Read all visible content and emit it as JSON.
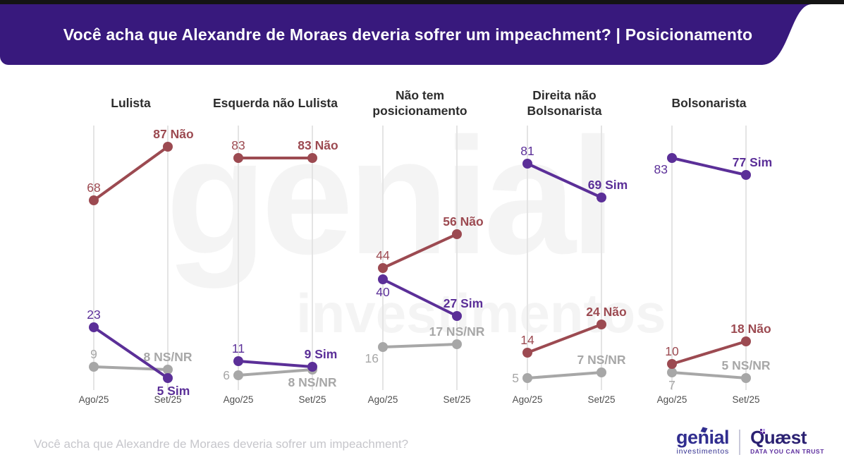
{
  "header": {
    "title": "Você acha que Alexandre de Moraes deveria sofrer um impeachment? | Posicionamento",
    "bg_color": "#38197D"
  },
  "watermark": {
    "line1": "genial",
    "line2": "investimentos"
  },
  "chart_data": {
    "type": "line",
    "subtype": "slope-chart-small-multiples",
    "x": [
      "Ago/25",
      "Set/25"
    ],
    "ylim": [
      0,
      100
    ],
    "grid": "vertical-only",
    "grid_color": "#e4e4e4",
    "axis_color": "#4f4f4f",
    "series_colors": {
      "nao": "#9C4A51",
      "sim": "#5B2F98",
      "nsnr": "#A7A7A7"
    },
    "panels": [
      {
        "title": "Lulista",
        "series": [
          {
            "key": "nsnr",
            "name": "NS/NR",
            "values": [
              9,
              8
            ],
            "labels": [
              {
                "text": "9",
                "pos": "above"
              },
              {
                "text": "8 NS/NR",
                "pos": "above"
              }
            ]
          },
          {
            "key": "nao",
            "name": "Não",
            "values": [
              68,
              87
            ],
            "labels": [
              {
                "text": "68",
                "pos": "above"
              },
              {
                "text": "87 Não",
                "pos": "above",
                "dx": 8
              }
            ]
          },
          {
            "key": "sim",
            "name": "Sim",
            "values": [
              23,
              5
            ],
            "labels": [
              {
                "text": "23",
                "pos": "above"
              },
              {
                "text": "5 Sim",
                "pos": "below",
                "dx": 8
              }
            ]
          }
        ]
      },
      {
        "title": "Esquerda não Lulista",
        "series": [
          {
            "key": "nsnr",
            "name": "NS/NR",
            "values": [
              6,
              8
            ],
            "labels": [
              {
                "text": "6",
                "pos": "left"
              },
              {
                "text": "8 NS/NR",
                "pos": "below"
              }
            ]
          },
          {
            "key": "nao",
            "name": "Não",
            "values": [
              83,
              83
            ],
            "labels": [
              {
                "text": "83",
                "pos": "above"
              },
              {
                "text": "83 Não",
                "pos": "above",
                "dx": 8
              }
            ]
          },
          {
            "key": "sim",
            "name": "Sim",
            "values": [
              11,
              9
            ],
            "labels": [
              {
                "text": "11",
                "pos": "above"
              },
              {
                "text": "9 Sim",
                "pos": "above",
                "dx": 12
              }
            ]
          }
        ]
      },
      {
        "title": "Não tem posicionamento",
        "series": [
          {
            "key": "nsnr",
            "name": "NS/NR",
            "values": [
              16,
              17
            ],
            "labels": [
              {
                "text": "16",
                "pos": "below-left"
              },
              {
                "text": "17 NS/NR",
                "pos": "above"
              }
            ]
          },
          {
            "key": "nao",
            "name": "Não",
            "values": [
              44,
              56
            ],
            "labels": [
              {
                "text": "44",
                "pos": "above"
              },
              {
                "text": "56 Não",
                "pos": "above",
                "dx": 9
              }
            ]
          },
          {
            "key": "sim",
            "name": "Sim",
            "values": [
              40,
              27
            ],
            "labels": [
              {
                "text": "40",
                "pos": "below"
              },
              {
                "text": "27 Sim",
                "pos": "above",
                "dx": 9
              }
            ]
          }
        ]
      },
      {
        "title": "Direita não Bolsonarista",
        "series": [
          {
            "key": "nsnr",
            "name": "NS/NR",
            "values": [
              5,
              7
            ],
            "labels": [
              {
                "text": "5",
                "pos": "left"
              },
              {
                "text": "7 NS/NR",
                "pos": "above"
              }
            ]
          },
          {
            "key": "nao",
            "name": "Não",
            "values": [
              14,
              24
            ],
            "labels": [
              {
                "text": "14",
                "pos": "above"
              },
              {
                "text": "24 Não",
                "pos": "above",
                "dx": 7
              }
            ]
          },
          {
            "key": "sim",
            "name": "Sim",
            "values": [
              81,
              69
            ],
            "labels": [
              {
                "text": "81",
                "pos": "above"
              },
              {
                "text": "69 Sim",
                "pos": "above",
                "dx": 9
              }
            ]
          }
        ]
      },
      {
        "title": "Bolsonarista",
        "series": [
          {
            "key": "nsnr",
            "name": "NS/NR",
            "values": [
              7,
              5
            ],
            "labels": [
              {
                "text": "7",
                "pos": "below"
              },
              {
                "text": "5 NS/NR",
                "pos": "above"
              }
            ]
          },
          {
            "key": "nao",
            "name": "Não",
            "values": [
              10,
              18
            ],
            "labels": [
              {
                "text": "10",
                "pos": "above"
              },
              {
                "text": "18 Não",
                "pos": "above",
                "dx": 7
              }
            ]
          },
          {
            "key": "sim",
            "name": "Sim",
            "values": [
              83,
              77
            ],
            "labels": [
              {
                "text": "83",
                "pos": "below-left"
              },
              {
                "text": "77 Sim",
                "pos": "above",
                "dx": 9
              }
            ]
          }
        ]
      }
    ]
  },
  "footer": {
    "question": "Você acha que Alexandre de Moraes deveria sofrer um impeachment?",
    "logos": {
      "genial": "genial",
      "genial_sub": "investimentos",
      "quaest": "Quæst",
      "quaest_tagline": "DATA YOU CAN TRUST"
    }
  }
}
